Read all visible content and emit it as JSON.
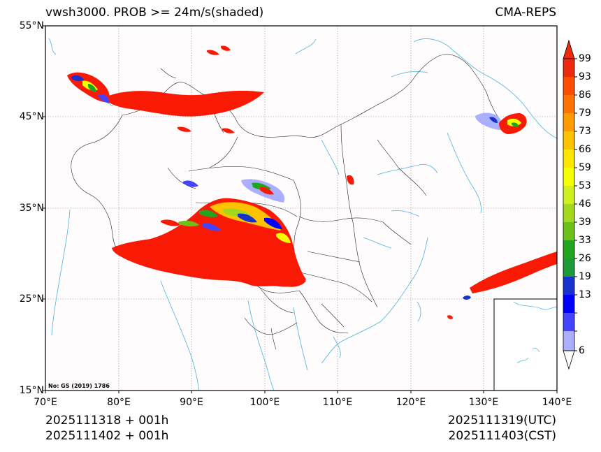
{
  "header": {
    "title": "vwsh3000. PROB >= 24m/s(shaded)",
    "model": "CMA-REPS"
  },
  "axes": {
    "lat_labels": [
      "55°N",
      "45°N",
      "35°N",
      "25°N",
      "15°N"
    ],
    "lon_labels": [
      "70°E",
      "80°E",
      "90°E",
      "100°E",
      "110°E",
      "120°E",
      "130°E",
      "140°E"
    ]
  },
  "colorbar": {
    "labels": [
      "99",
      "93",
      "86",
      "79",
      "73",
      "66",
      "59",
      "53",
      "46",
      "39",
      "33",
      "26",
      "19",
      "13",
      "6"
    ],
    "colors": [
      "#ee2a0e",
      "#ff4d00",
      "#ff7100",
      "#ff9a00",
      "#ffc200",
      "#ffe600",
      "#f6ff00",
      "#cfef1f",
      "#a4d81d",
      "#6cc01a",
      "#21a520",
      "#1b9a35",
      "#1733cc",
      "#0000ff",
      "#4444ff",
      "#aab0ff"
    ]
  },
  "footer": {
    "init_utc": "2025111318  +  001h",
    "init_cst": "2025111402  +  001h",
    "valid_utc": "2025111319(UTC)",
    "valid_cst": "2025111403(CST)"
  },
  "map_note": "No: GS (2019) 1786"
}
